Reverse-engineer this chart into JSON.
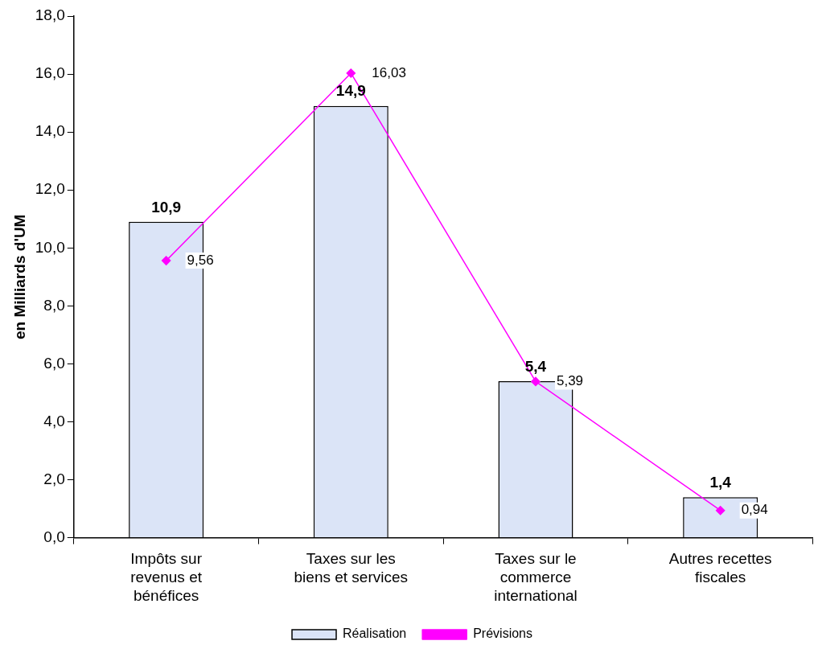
{
  "chart_data": {
    "type": "bar",
    "ylabel": "en Milliards d'UM",
    "categories": [
      "Impôts sur revenus et bénéfices",
      "Taxes sur les biens et services",
      "Taxes sur le commerce international",
      "Autres recettes fiscales"
    ],
    "series": [
      {
        "name": "Réalisation",
        "color": "#dbe4f7",
        "values": [
          10.9,
          14.9,
          5.4,
          1.4
        ],
        "value_labels": [
          "10,9",
          "14,9",
          "5,4",
          "1,4"
        ]
      },
      {
        "name": "Prévisions",
        "type": "line",
        "color": "#ff00ff",
        "values": [
          9.56,
          16.03,
          5.39,
          0.94
        ],
        "value_labels": [
          "9,56",
          "16,03",
          "5,39",
          "0,94"
        ],
        "marker": "diamond"
      }
    ],
    "ylim": [
      0,
      18
    ],
    "yticks": [
      {
        "value": 0,
        "label": "0,0"
      },
      {
        "value": 2,
        "label": "2,0"
      },
      {
        "value": 4,
        "label": "4,0"
      },
      {
        "value": 6,
        "label": "6,0"
      },
      {
        "value": 8,
        "label": "8,0"
      },
      {
        "value": 10,
        "label": "10,0"
      },
      {
        "value": 12,
        "label": "12,0"
      },
      {
        "value": 14,
        "label": "14,0"
      },
      {
        "value": 16,
        "label": "16,0"
      },
      {
        "value": 18,
        "label": "18,0"
      }
    ],
    "grid": false,
    "legend": "bottom"
  }
}
